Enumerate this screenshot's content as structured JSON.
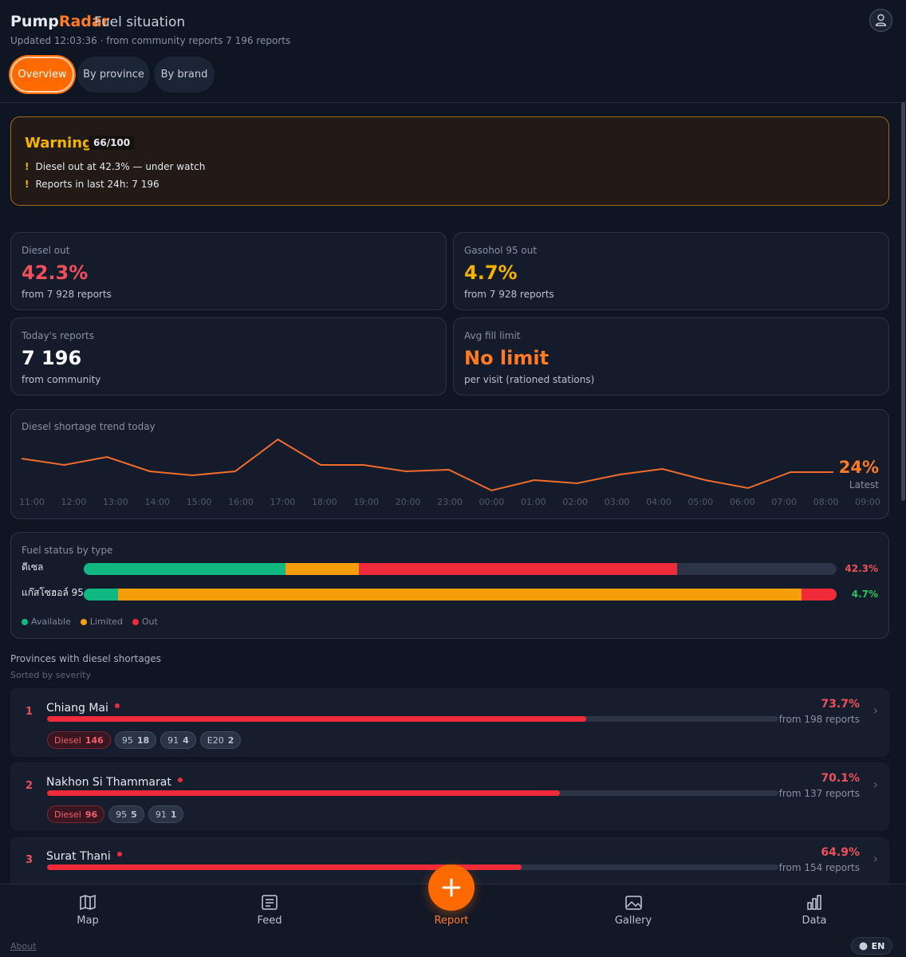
{
  "header": {
    "brand_a": "Pump",
    "brand_b": "Radar",
    "subtitle": "Fuel situation",
    "updated": "Updated 12:03:36 · from community reports 7 196 reports"
  },
  "tabs": [
    "Overview",
    "By province",
    "By brand"
  ],
  "alert": {
    "title": "Warning",
    "score": "66/100",
    "items": [
      "Diesel out at 42.3% — under watch",
      "Reports in last 24h: 7 196"
    ]
  },
  "stats": [
    {
      "label": "Diesel out",
      "value": "42.3%",
      "note": "from 7 928 reports"
    },
    {
      "label": "Gasohol 95 out",
      "value": "4.7%",
      "note": "from 7 928 reports"
    },
    {
      "label": "Today's reports",
      "value": "7 196",
      "note": "from community"
    },
    {
      "label": "Avg fill limit",
      "value": "No limit",
      "note": "per visit (rationed stations)"
    }
  ],
  "trend": {
    "chart_data": {
      "type": "line",
      "title": "Diesel shortage trend today",
      "x": [
        "11:00",
        "12:00",
        "13:00",
        "14:00",
        "15:00",
        "16:00",
        "17:00",
        "18:00",
        "19:00",
        "20:00",
        "23:00",
        "00:00",
        "01:00",
        "02:00",
        "03:00",
        "04:00",
        "05:00",
        "06:00",
        "07:00",
        "08:00",
        "09:00"
      ],
      "values": [
        32.5,
        28.5,
        33.5,
        24.5,
        22,
        24.5,
        44.5,
        28.5,
        28.5,
        24.5,
        25.5,
        12.5,
        19,
        17,
        22.5,
        26,
        19,
        14,
        24,
        24,
        null
      ],
      "color": "#f26b2a",
      "latest_value": "24%",
      "latest_label": "Latest"
    }
  },
  "fuel_status": {
    "title": "Fuel status by type",
    "rows": [
      {
        "name": "ดีเซล",
        "available": 26.8,
        "limited": 9.7,
        "out": 42.3,
        "out_label": "42.3%"
      },
      {
        "name": "แก๊สโซฮอล์ 95",
        "available": 4.6,
        "limited": 90.7,
        "out": 4.7,
        "out_label": "4.7%"
      }
    ],
    "legend": [
      "Available",
      "Limited",
      "Out"
    ]
  },
  "provinces": {
    "title": "Provinces with diesel shortages",
    "subtitle": "Sorted by severity",
    "items": [
      {
        "rank": 1,
        "name": "Chiang Mai",
        "pct": 73.7,
        "pct_label": "73.7%",
        "note": "from 198 reports",
        "tags": [
          {
            "label": "Diesel",
            "count": 146
          },
          {
            "label": "95",
            "count": 18
          },
          {
            "label": "91",
            "count": 4
          },
          {
            "label": "E20",
            "count": 2
          }
        ]
      },
      {
        "rank": 2,
        "name": "Nakhon Si Thammarat",
        "pct": 70.1,
        "pct_label": "70.1%",
        "note": "from 137 reports",
        "tags": [
          {
            "label": "Diesel",
            "count": 96
          },
          {
            "label": "95",
            "count": 5
          },
          {
            "label": "91",
            "count": 1
          }
        ]
      },
      {
        "rank": 3,
        "name": "Surat Thani",
        "pct": 64.9,
        "pct_label": "64.9%",
        "note": "from 154 reports"
      }
    ]
  },
  "nav": [
    "Map",
    "Feed",
    "Report",
    "Gallery",
    "Data"
  ],
  "footer": {
    "about": "About",
    "lang": "EN"
  }
}
